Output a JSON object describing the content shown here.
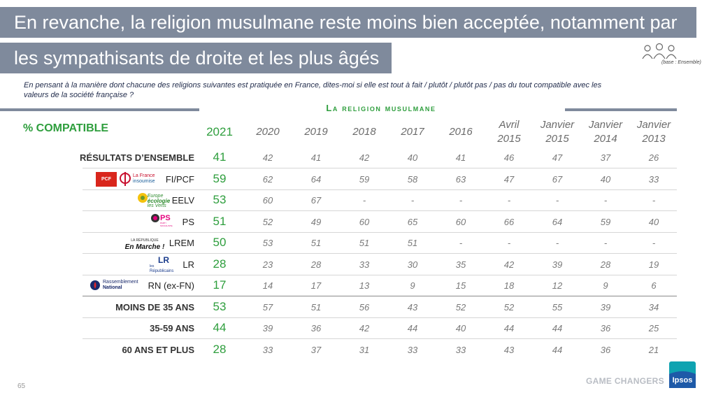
{
  "title_line1": "En revanche, la religion musulmane reste moins bien acceptée, notamment par",
  "title_line2": "les sympathisants de droite et les plus âgés",
  "base_note": "(base : Ensemble)",
  "question": "En pensant à la manière dont chacune des religions suivantes est pratiquée en France, dites-moi si elle est tout à fait / plutôt / plutôt pas / pas du tout compatible avec les valeurs de la société française ?",
  "table_title": "La religion musulmane",
  "pct_label": "% COMPATIBLE",
  "logos": {
    "pcf": "PCF",
    "lfi_line1": "La France",
    "lfi_line2": "insoumise",
    "eelv_line1": "Europe",
    "eelv_line2": "écologie",
    "eelv_line3": "les Verts",
    "ps": "PS",
    "ps_sub": "PARTI SOCIALISTE",
    "lrem_line1": "LA RÉPUBLIQUE",
    "lrem_line2": "En Marche !",
    "lr_mark": "LR",
    "lr_line1": "les",
    "lr_line2": "Républicains",
    "rn_line1": "Rassemblement",
    "rn_line2": "National"
  },
  "page_number": "65",
  "footer_brand": "GAME CHANGERS",
  "ipsos_label": "Ipsos",
  "colors": {
    "accent_green": "#2e9e3d",
    "title_bar": "#7f8a9c",
    "ipsos_blue": "#1e5aa8",
    "ipsos_teal": "#0fa3b1"
  },
  "chart_data": {
    "type": "table",
    "columns": [
      [
        "2021"
      ],
      [
        "2020"
      ],
      [
        "2019"
      ],
      [
        "2018"
      ],
      [
        "2017"
      ],
      [
        "2016"
      ],
      [
        "Avril",
        "2015"
      ],
      [
        "Janvier",
        "2015"
      ],
      [
        "Janvier",
        "2014"
      ],
      [
        "Janvier",
        "2013"
      ]
    ],
    "rows": [
      {
        "label": "RÉSULTATS D’ENSEMBLE",
        "values": [
          "41",
          "42",
          "41",
          "42",
          "40",
          "41",
          "46",
          "47",
          "37",
          "26"
        ]
      },
      {
        "label": "FI/PCF",
        "values": [
          "59",
          "62",
          "64",
          "59",
          "58",
          "63",
          "47",
          "67",
          "40",
          "33"
        ]
      },
      {
        "label": "EELV",
        "values": [
          "53",
          "60",
          "67",
          "-",
          "-",
          "-",
          "-",
          "-",
          "-",
          "-"
        ]
      },
      {
        "label": "PS",
        "values": [
          "51",
          "52",
          "49",
          "60",
          "65",
          "60",
          "66",
          "64",
          "59",
          "40"
        ]
      },
      {
        "label": "LREM",
        "values": [
          "50",
          "53",
          "51",
          "51",
          "51",
          "-",
          "-",
          "-",
          "-",
          "-"
        ]
      },
      {
        "label": "LR",
        "values": [
          "28",
          "23",
          "28",
          "33",
          "30",
          "35",
          "42",
          "39",
          "28",
          "19"
        ]
      },
      {
        "label": "RN (ex-FN)",
        "values": [
          "17",
          "14",
          "17",
          "13",
          "9",
          "15",
          "18",
          "12",
          "9",
          "6"
        ]
      },
      {
        "label": "MOINS DE 35 ANS",
        "values": [
          "53",
          "57",
          "51",
          "56",
          "43",
          "52",
          "52",
          "55",
          "39",
          "34"
        ]
      },
      {
        "label": "35-59 ANS",
        "values": [
          "44",
          "39",
          "36",
          "42",
          "44",
          "40",
          "44",
          "44",
          "36",
          "25"
        ]
      },
      {
        "label": "60 ANS ET PLUS",
        "values": [
          "28",
          "33",
          "37",
          "31",
          "33",
          "33",
          "43",
          "44",
          "36",
          "21"
        ]
      }
    ]
  }
}
